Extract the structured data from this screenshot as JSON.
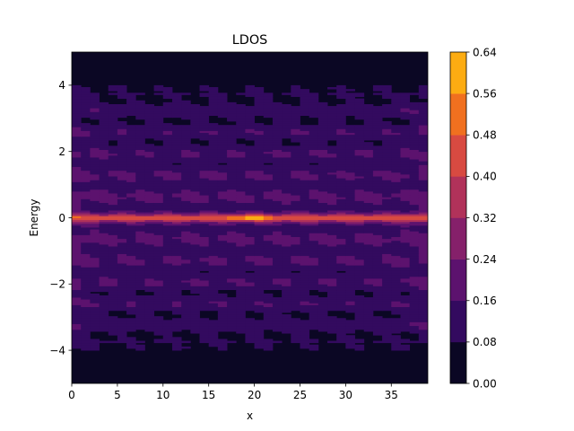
{
  "chart_data": {
    "type": "heatmap",
    "title": "LDOS",
    "xlabel": "x",
    "ylabel": "Energy",
    "xlim": [
      0,
      39
    ],
    "ylim": [
      -5,
      5
    ],
    "x_ticks": [
      0,
      5,
      10,
      15,
      20,
      25,
      30,
      35
    ],
    "y_ticks": [
      -4,
      -2,
      0,
      2,
      4
    ],
    "x_tick_labels": [
      "0",
      "5",
      "10",
      "15",
      "20",
      "25",
      "30",
      "35"
    ],
    "y_tick_labels": [
      "−4",
      "−2",
      "0",
      "2",
      "4"
    ],
    "band_energy_range": [
      -4,
      4
    ],
    "band_peak_energy": 0,
    "band_peak_x": 19.5,
    "grid": false,
    "colorbar": {
      "levels": [
        0.0,
        0.08,
        0.16,
        0.24,
        0.32,
        0.4,
        0.48,
        0.56,
        0.64
      ],
      "tick_labels": [
        "0.00",
        "0.08",
        "0.16",
        "0.24",
        "0.32",
        "0.40",
        "0.48",
        "0.56",
        "0.64"
      ],
      "colors": [
        "#0b0724",
        "#330a5f",
        "#5c126e",
        "#85206a",
        "#b1325a",
        "#d84a41",
        "#f0701f",
        "#fcac12",
        "#f0eb6a"
      ],
      "colormap": "inferno"
    }
  }
}
